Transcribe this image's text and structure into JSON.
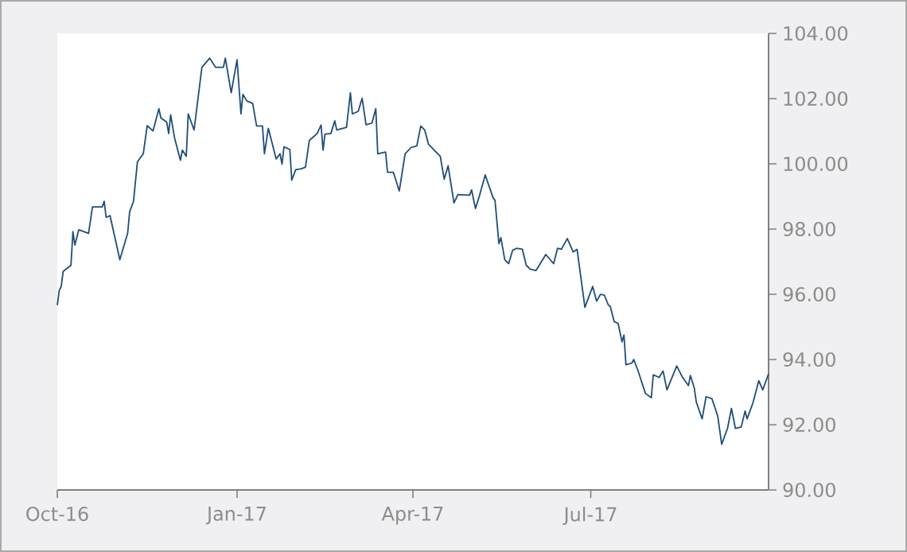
{
  "chart_data": {
    "type": "line",
    "x": [
      "2016-10-01",
      "2016-10-02",
      "2016-10-03",
      "2016-10-04",
      "2016-10-08",
      "2016-10-09",
      "2016-10-10",
      "2016-10-12",
      "2016-10-17",
      "2016-10-19",
      "2016-10-24",
      "2016-10-25",
      "2016-10-26",
      "2016-10-28",
      "2016-11-02",
      "2016-11-06",
      "2016-11-07",
      "2016-11-09",
      "2016-11-11",
      "2016-11-14",
      "2016-11-16",
      "2016-11-19",
      "2016-11-22",
      "2016-11-23",
      "2016-11-26",
      "2016-11-27",
      "2016-11-28",
      "2016-11-30",
      "2016-12-03",
      "2016-12-04",
      "2016-12-06",
      "2016-12-07",
      "2016-12-10",
      "2016-12-14",
      "2016-12-18",
      "2016-12-21",
      "2016-12-25",
      "2016-12-26",
      "2016-12-29",
      "2017-01-01",
      "2017-01-03",
      "2017-01-04",
      "2017-01-06",
      "2017-01-09",
      "2017-01-11",
      "2017-01-14",
      "2017-01-15",
      "2017-01-17",
      "2017-01-21",
      "2017-01-23",
      "2017-01-24",
      "2017-01-25",
      "2017-01-28",
      "2017-01-29",
      "2017-01-31",
      "2017-02-03",
      "2017-02-05",
      "2017-02-07",
      "2017-02-11",
      "2017-02-13",
      "2017-02-14",
      "2017-02-15",
      "2017-02-18",
      "2017-02-20",
      "2017-02-21",
      "2017-02-26",
      "2017-02-28",
      "2017-03-01",
      "2017-03-04",
      "2017-03-06",
      "2017-03-08",
      "2017-03-11",
      "2017-03-13",
      "2017-03-14",
      "2017-03-18",
      "2017-03-19",
      "2017-03-22",
      "2017-03-25",
      "2017-03-28",
      "2017-03-31",
      "2017-04-03",
      "2017-04-05",
      "2017-04-07",
      "2017-04-09",
      "2017-04-15",
      "2017-04-17",
      "2017-04-19",
      "2017-04-22",
      "2017-04-24",
      "2017-04-30",
      "2017-05-01",
      "2017-05-03",
      "2017-05-05",
      "2017-05-08",
      "2017-05-12",
      "2017-05-13",
      "2017-05-15",
      "2017-05-16",
      "2017-05-18",
      "2017-05-20",
      "2017-05-22",
      "2017-05-24",
      "2017-05-27",
      "2017-05-29",
      "2017-05-31",
      "2017-06-03",
      "2017-06-08",
      "2017-06-12",
      "2017-06-14",
      "2017-06-16",
      "2017-06-19",
      "2017-06-22",
      "2017-06-24",
      "2017-06-28",
      "2017-07-02",
      "2017-07-04",
      "2017-07-06",
      "2017-07-08",
      "2017-07-10",
      "2017-07-11",
      "2017-07-13",
      "2017-07-15",
      "2017-07-17",
      "2017-07-18",
      "2017-07-19",
      "2017-07-22",
      "2017-07-23",
      "2017-07-25",
      "2017-07-29",
      "2017-08-01",
      "2017-08-02",
      "2017-08-05",
      "2017-08-07",
      "2017-08-09",
      "2017-08-14",
      "2017-08-17",
      "2017-08-20",
      "2017-08-21",
      "2017-08-23",
      "2017-08-24",
      "2017-08-27",
      "2017-08-29",
      "2017-09-01",
      "2017-09-04",
      "2017-09-06",
      "2017-09-09",
      "2017-09-11",
      "2017-09-13",
      "2017-09-16",
      "2017-09-18",
      "2017-09-19",
      "2017-09-22",
      "2017-09-25",
      "2017-09-27",
      "2017-09-30"
    ],
    "series": [
      {
        "color": "#1f4e79",
        "values": [
          95.67,
          96.11,
          96.24,
          96.7,
          96.89,
          97.92,
          97.51,
          97.98,
          97.87,
          98.68,
          98.68,
          98.85,
          98.36,
          98.41,
          97.06,
          97.87,
          98.52,
          98.85,
          100.06,
          100.31,
          101.17,
          101.01,
          101.69,
          101.41,
          101.28,
          100.93,
          101.5,
          100.8,
          100.11,
          100.42,
          100.23,
          101.53,
          101.04,
          102.96,
          103.24,
          102.96,
          102.96,
          103.24,
          102.18,
          103.19,
          101.53,
          102.13,
          101.93,
          101.85,
          101.16,
          101.16,
          100.31,
          101.09,
          100.15,
          100.31,
          99.99,
          100.52,
          100.44,
          99.5,
          99.82,
          99.85,
          99.9,
          100.72,
          100.93,
          101.19,
          100.42,
          100.91,
          100.93,
          101.32,
          101.04,
          101.12,
          102.18,
          101.53,
          101.61,
          102.01,
          101.2,
          101.25,
          101.69,
          100.31,
          100.36,
          99.74,
          99.74,
          99.17,
          100.31,
          100.5,
          100.55,
          101.16,
          101.04,
          100.6,
          100.23,
          99.53,
          99.94,
          98.8,
          99.06,
          99.04,
          99.2,
          98.63,
          99.01,
          99.66,
          98.96,
          98.88,
          97.55,
          97.74,
          97.06,
          96.94,
          97.35,
          97.41,
          97.38,
          96.89,
          96.77,
          96.73,
          97.22,
          96.94,
          97.41,
          97.38,
          97.71,
          97.3,
          97.38,
          95.6,
          96.24,
          95.79,
          96.0,
          95.97,
          95.67,
          95.63,
          95.16,
          95.11,
          94.54,
          94.75,
          93.84,
          93.89,
          94.0,
          93.69,
          92.96,
          92.83,
          93.53,
          93.45,
          93.65,
          93.07,
          93.8,
          93.45,
          93.2,
          93.51,
          93.12,
          92.7,
          92.18,
          92.86,
          92.8,
          92.26,
          91.4,
          91.89,
          92.5,
          91.89,
          91.93,
          92.42,
          92.18,
          92.67,
          93.35,
          93.07,
          93.56
        ]
      }
    ],
    "xlim": [
      "2016-10-01",
      "2017-09-30"
    ],
    "xticks": [
      {
        "value": "2016-10-01",
        "label": "Oct-16"
      },
      {
        "value": "2017-01-01",
        "label": "Jan-17"
      },
      {
        "value": "2017-04-01",
        "label": "Apr-17"
      },
      {
        "value": "2017-07-01",
        "label": "Jul-17"
      }
    ],
    "ylim": [
      90,
      104
    ],
    "yticks": [
      {
        "value": 90,
        "label": "90.00"
      },
      {
        "value": 92,
        "label": "92.00"
      },
      {
        "value": 94,
        "label": "94.00"
      },
      {
        "value": 96,
        "label": "96.00"
      },
      {
        "value": 98,
        "label": "98.00"
      },
      {
        "value": 100,
        "label": "100.00"
      },
      {
        "value": 102,
        "label": "102.00"
      },
      {
        "value": 104,
        "label": "104.00"
      }
    ]
  }
}
